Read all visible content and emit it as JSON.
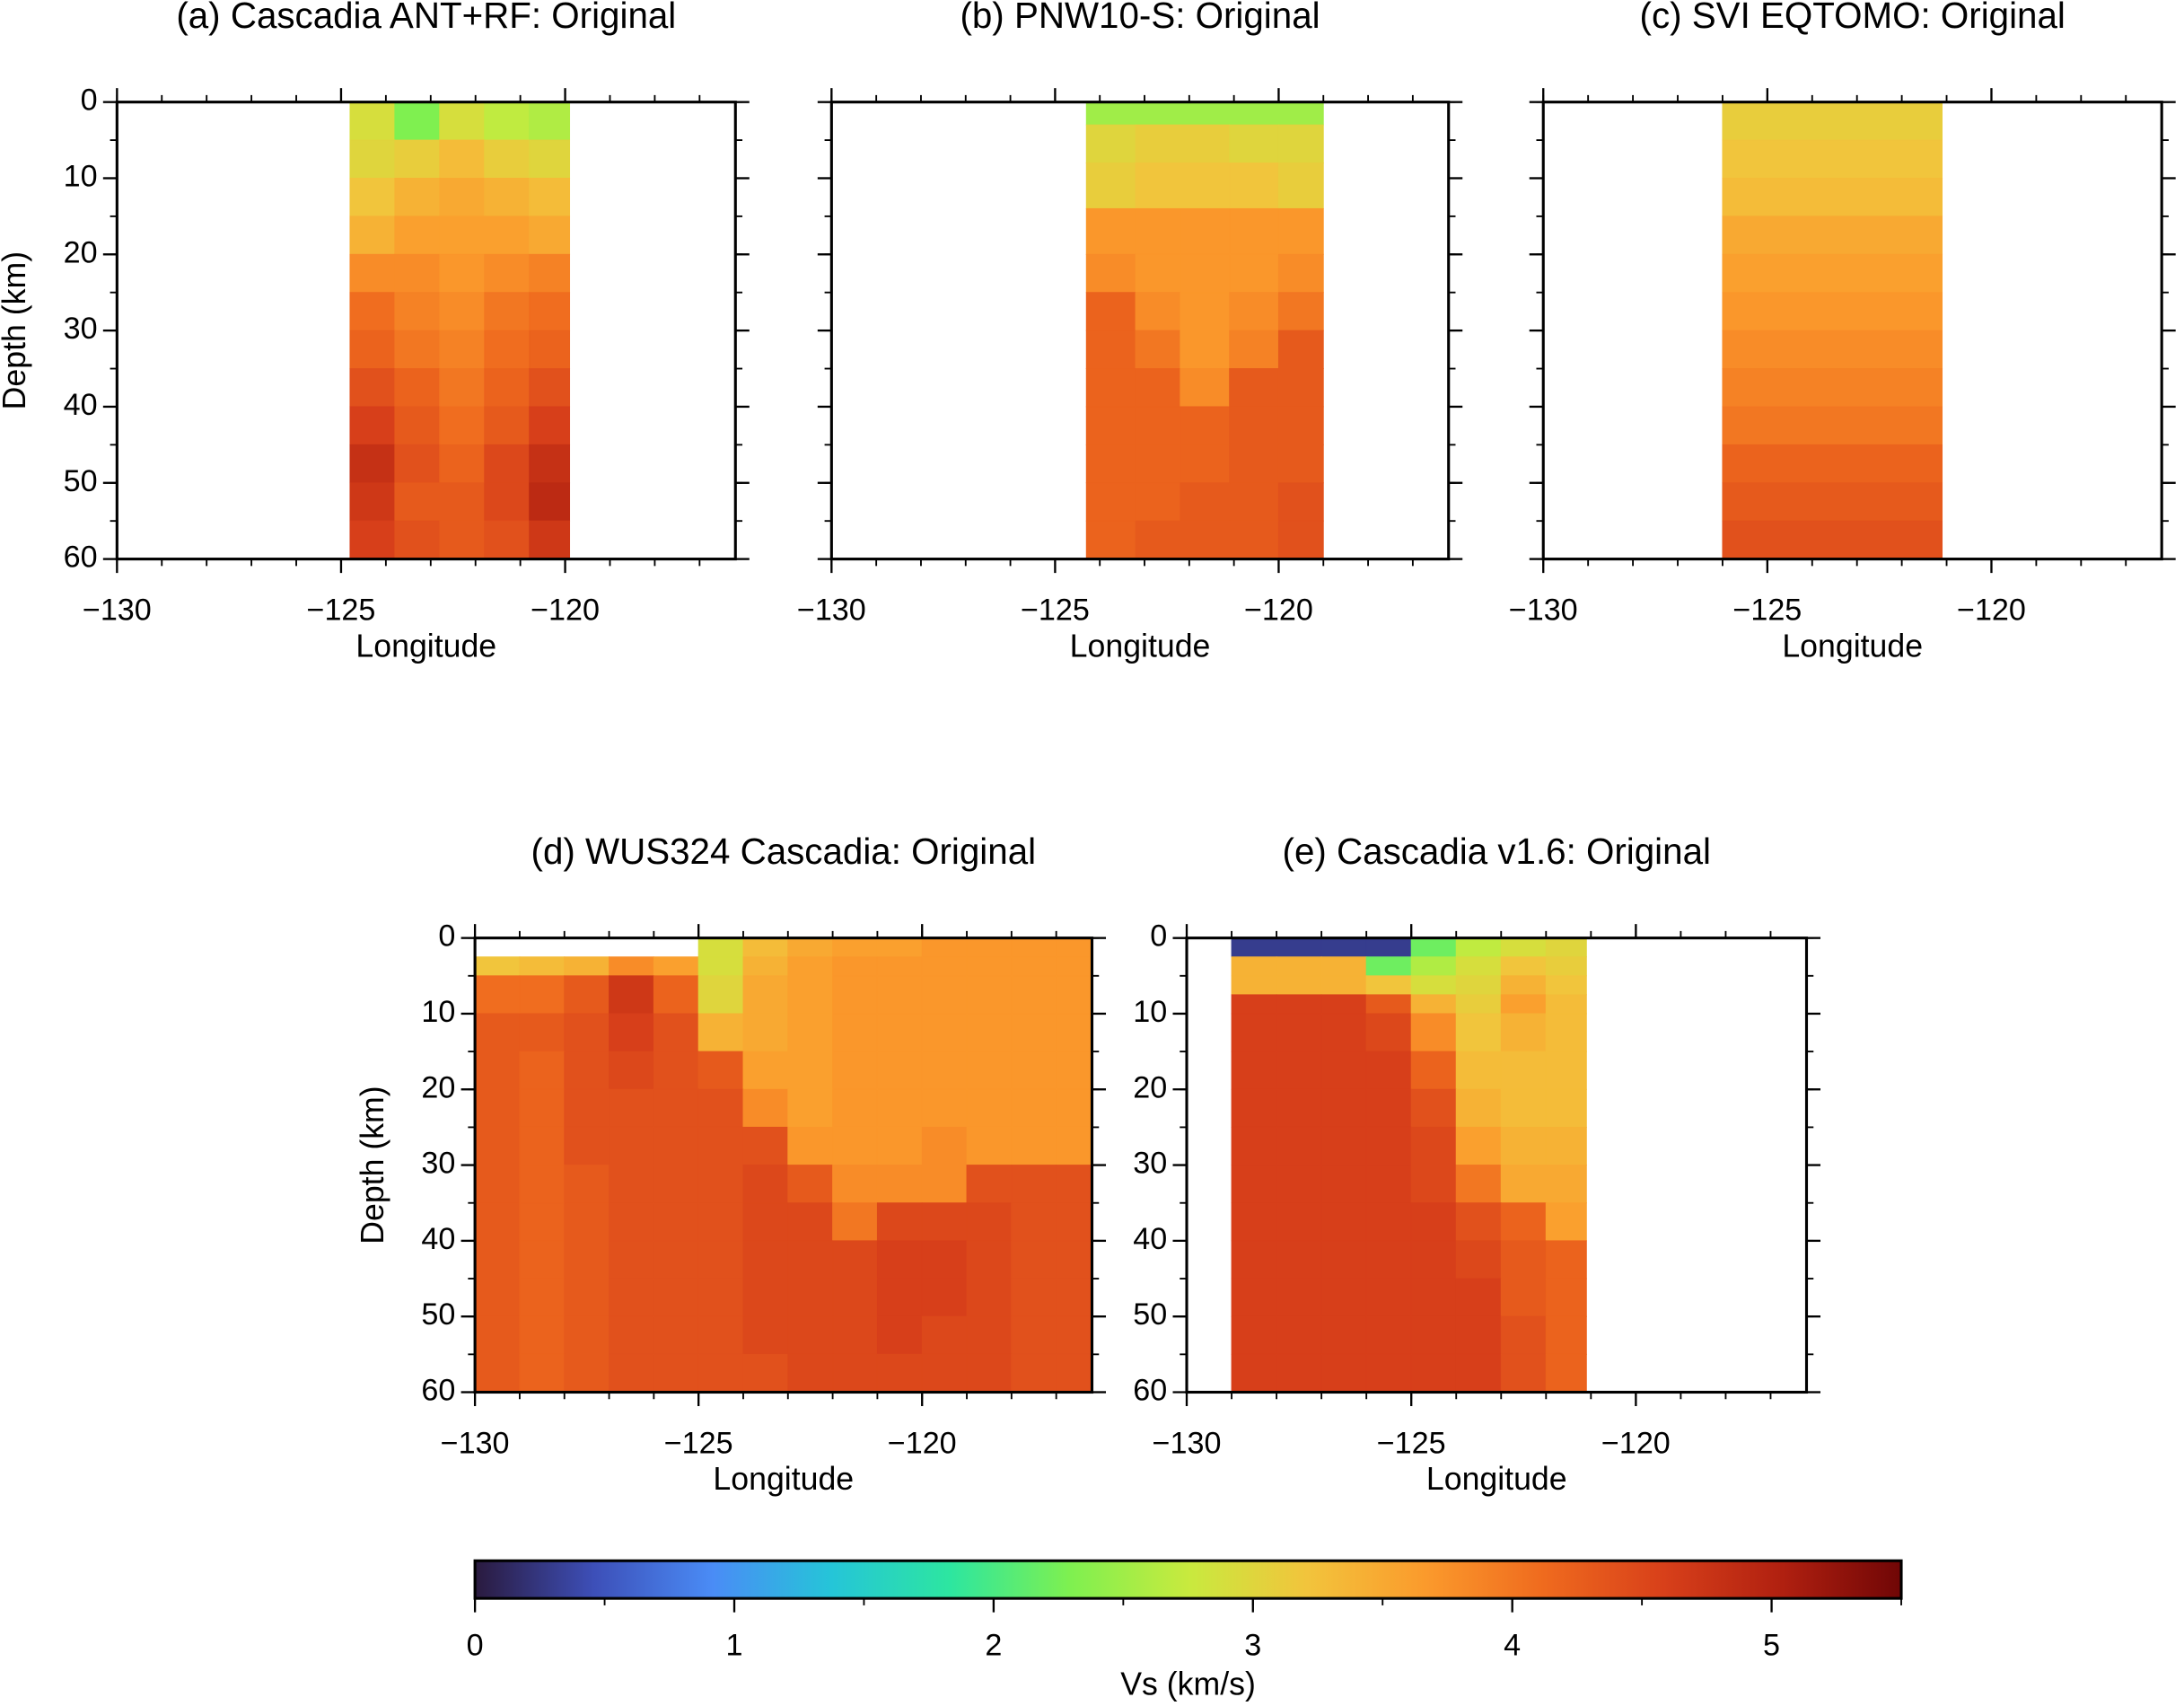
{
  "chart_data": [
    {
      "type": "heatmap",
      "title": "(a) Cascadia ANT+RF: Original",
      "xlabel": "Longitude",
      "ylabel": "Depth (km)",
      "xlim": [
        -130,
        -116.2
      ],
      "ylim": [
        60,
        0
      ],
      "xticks": [
        {
          "value": -130,
          "label": "−130"
        },
        {
          "value": -125,
          "label": "−125"
        },
        {
          "value": -120,
          "label": "−120"
        }
      ],
      "yticks": [
        0,
        10,
        20,
        30,
        40,
        50,
        60
      ],
      "show_ytick_labels": true,
      "x_edges": [
        -124.8,
        -123.8,
        -122.8,
        -121.8,
        -120.8,
        -119.9
      ],
      "y_edges": [
        0,
        5,
        10,
        15,
        20,
        25,
        30,
        35,
        40,
        45,
        50,
        55,
        60
      ],
      "z": [
        [
          2.9,
          2.3,
          2.9,
          2.7,
          2.6
        ],
        [
          3.0,
          3.1,
          3.3,
          3.1,
          3.0
        ],
        [
          3.2,
          3.4,
          3.5,
          3.4,
          3.3
        ],
        [
          3.4,
          3.6,
          3.6,
          3.6,
          3.5
        ],
        [
          3.8,
          3.8,
          3.7,
          3.8,
          3.9
        ],
        [
          4.1,
          3.9,
          3.8,
          4.0,
          4.1
        ],
        [
          4.2,
          4.0,
          3.9,
          4.1,
          4.2
        ],
        [
          4.4,
          4.2,
          4.0,
          4.2,
          4.4
        ],
        [
          4.6,
          4.3,
          4.1,
          4.3,
          4.6
        ],
        [
          4.8,
          4.4,
          4.2,
          4.5,
          4.8
        ],
        [
          4.7,
          4.3,
          4.3,
          4.5,
          4.9
        ],
        [
          4.6,
          4.4,
          4.3,
          4.4,
          4.7
        ]
      ]
    },
    {
      "type": "heatmap",
      "title": "(b) PNW10-S: Original",
      "xlabel": "Longitude",
      "xlim": [
        -130,
        -116.2
      ],
      "ylim": [
        60,
        0
      ],
      "xticks": [
        {
          "value": -130,
          "label": "−130"
        },
        {
          "value": -125,
          "label": "−125"
        },
        {
          "value": -120,
          "label": "−120"
        }
      ],
      "yticks": [
        0,
        10,
        20,
        30,
        40,
        50,
        60
      ],
      "show_ytick_labels": false,
      "x_edges": [
        -124.3,
        -123.2,
        -122.2,
        -121.1,
        -120.0,
        -119.0
      ],
      "y_edges": [
        0,
        3,
        8,
        14,
        20,
        25,
        30,
        35,
        40,
        45,
        50,
        55,
        60
      ],
      "z": [
        [
          2.5,
          2.5,
          2.5,
          2.5,
          2.5
        ],
        [
          3.0,
          3.1,
          3.1,
          3.0,
          3.0
        ],
        [
          3.1,
          3.2,
          3.2,
          3.2,
          3.1
        ],
        [
          3.7,
          3.7,
          3.7,
          3.7,
          3.7
        ],
        [
          3.8,
          3.7,
          3.7,
          3.7,
          3.8
        ],
        [
          4.2,
          3.8,
          3.7,
          3.8,
          4.0
        ],
        [
          4.2,
          4.0,
          3.7,
          3.9,
          4.3
        ],
        [
          4.2,
          4.2,
          3.8,
          4.3,
          4.3
        ],
        [
          4.2,
          4.2,
          4.2,
          4.3,
          4.3
        ],
        [
          4.2,
          4.2,
          4.2,
          4.3,
          4.3
        ],
        [
          4.2,
          4.2,
          4.3,
          4.3,
          4.4
        ],
        [
          4.2,
          4.3,
          4.3,
          4.3,
          4.4
        ]
      ]
    },
    {
      "type": "heatmap",
      "title": "(c) SVI EQTOMO: Original",
      "xlabel": "Longitude",
      "xlim": [
        -130,
        -116.2
      ],
      "ylim": [
        60,
        0
      ],
      "xticks": [
        {
          "value": -130,
          "label": "−130"
        },
        {
          "value": -125,
          "label": "−125"
        },
        {
          "value": -120,
          "label": "−120"
        }
      ],
      "yticks": [
        0,
        10,
        20,
        30,
        40,
        50,
        60
      ],
      "show_ytick_labels": false,
      "x_edges": [
        -126.0,
        -121.1
      ],
      "y_edges": [
        0,
        5,
        10,
        15,
        20,
        25,
        30,
        35,
        40,
        45,
        50,
        55,
        60
      ],
      "z": [
        [
          3.1
        ],
        [
          3.2
        ],
        [
          3.3
        ],
        [
          3.5
        ],
        [
          3.6
        ],
        [
          3.7
        ],
        [
          3.8
        ],
        [
          3.9
        ],
        [
          4.0
        ],
        [
          4.2
        ],
        [
          4.3
        ],
        [
          4.4
        ]
      ]
    },
    {
      "type": "heatmap",
      "title": "(d) WUS324 Cascadia: Original",
      "xlabel": "Longitude",
      "ylabel": "Depth (km)",
      "xlim": [
        -130,
        -116.2
      ],
      "ylim": [
        60,
        0
      ],
      "xticks": [
        {
          "value": -130,
          "label": "−130"
        },
        {
          "value": -125,
          "label": "−125"
        },
        {
          "value": -120,
          "label": "−120"
        }
      ],
      "yticks": [
        0,
        10,
        20,
        30,
        40,
        50,
        60
      ],
      "show_ytick_labels": true,
      "x_edges": [
        -130,
        -129,
        -128,
        -127,
        -126,
        -125,
        -124,
        -123,
        -122,
        -121,
        -120,
        -119,
        -118,
        -117,
        -116.2
      ],
      "y_edges": [
        0,
        2.5,
        5,
        10,
        15,
        20,
        25,
        30,
        35,
        40,
        45,
        50,
        55,
        60
      ],
      "z": [
        [
          null,
          null,
          null,
          null,
          null,
          2.9,
          3.3,
          3.5,
          3.6,
          3.6,
          3.7,
          3.7,
          3.7,
          3.7
        ],
        [
          3.2,
          3.3,
          3.4,
          3.8,
          3.6,
          2.9,
          3.4,
          3.6,
          3.7,
          3.7,
          3.7,
          3.7,
          3.7,
          3.7
        ],
        [
          4.1,
          4.1,
          4.3,
          4.7,
          4.2,
          3.0,
          3.5,
          3.6,
          3.7,
          3.7,
          3.7,
          3.7,
          3.7,
          3.7
        ],
        [
          4.3,
          4.3,
          4.4,
          4.6,
          4.4,
          3.4,
          3.5,
          3.6,
          3.7,
          3.7,
          3.7,
          3.7,
          3.7,
          3.7
        ],
        [
          4.3,
          4.2,
          4.4,
          4.5,
          4.4,
          4.3,
          3.6,
          3.6,
          3.7,
          3.7,
          3.7,
          3.7,
          3.7,
          3.7
        ],
        [
          4.3,
          4.2,
          4.4,
          4.4,
          4.4,
          4.4,
          3.8,
          3.6,
          3.7,
          3.7,
          3.7,
          3.7,
          3.7,
          3.7
        ],
        [
          4.3,
          4.2,
          4.4,
          4.4,
          4.4,
          4.4,
          4.4,
          3.7,
          3.7,
          3.7,
          3.8,
          3.7,
          3.7,
          3.7
        ],
        [
          4.3,
          4.2,
          4.3,
          4.4,
          4.4,
          4.4,
          4.5,
          4.3,
          3.8,
          3.8,
          3.8,
          4.4,
          4.4,
          4.4
        ],
        [
          4.3,
          4.2,
          4.3,
          4.4,
          4.4,
          4.4,
          4.5,
          4.5,
          4.0,
          4.5,
          4.5,
          4.5,
          4.4,
          4.4
        ],
        [
          4.3,
          4.2,
          4.3,
          4.4,
          4.4,
          4.4,
          4.5,
          4.5,
          4.5,
          4.6,
          4.6,
          4.5,
          4.4,
          4.4
        ],
        [
          4.3,
          4.2,
          4.3,
          4.4,
          4.4,
          4.4,
          4.5,
          4.5,
          4.5,
          4.6,
          4.6,
          4.5,
          4.4,
          4.4
        ],
        [
          4.3,
          4.2,
          4.3,
          4.4,
          4.4,
          4.4,
          4.5,
          4.5,
          4.5,
          4.6,
          4.5,
          4.5,
          4.4,
          4.4
        ],
        [
          4.3,
          4.2,
          4.3,
          4.4,
          4.4,
          4.4,
          4.4,
          4.5,
          4.5,
          4.5,
          4.5,
          4.5,
          4.4,
          4.4
        ]
      ]
    },
    {
      "type": "heatmap",
      "title": "(e) Cascadia v1.6: Original",
      "xlabel": "Longitude",
      "xlim": [
        -130,
        -116.2
      ],
      "ylim": [
        60,
        0
      ],
      "xticks": [
        {
          "value": -130,
          "label": "−130"
        },
        {
          "value": -125,
          "label": "−125"
        },
        {
          "value": -120,
          "label": "−120"
        }
      ],
      "yticks": [
        0,
        10,
        20,
        30,
        40,
        50,
        60
      ],
      "show_ytick_labels": true,
      "x_edges": [
        -129,
        -128,
        -127,
        -126,
        -125,
        -124,
        -123,
        -122,
        -121.1
      ],
      "y_edges": [
        0,
        2.5,
        5,
        7.5,
        10,
        15,
        20,
        25,
        30,
        35,
        40,
        45,
        50,
        55,
        60
      ],
      "z": [
        [
          0.3,
          0.3,
          0.3,
          0.3,
          2.2,
          2.7,
          2.9,
          3.0
        ],
        [
          3.4,
          3.4,
          3.4,
          2.2,
          2.6,
          2.9,
          3.2,
          3.1
        ],
        [
          3.4,
          3.4,
          3.4,
          3.2,
          2.9,
          3.0,
          3.4,
          3.2
        ],
        [
          4.6,
          4.6,
          4.6,
          4.3,
          3.4,
          3.1,
          3.6,
          3.3
        ],
        [
          4.6,
          4.6,
          4.6,
          4.5,
          3.8,
          3.2,
          3.4,
          3.3
        ],
        [
          4.6,
          4.6,
          4.6,
          4.6,
          4.2,
          3.3,
          3.3,
          3.3
        ],
        [
          4.6,
          4.6,
          4.6,
          4.6,
          4.4,
          3.4,
          3.3,
          3.3
        ],
        [
          4.6,
          4.6,
          4.6,
          4.6,
          4.5,
          3.6,
          3.4,
          3.4
        ],
        [
          4.6,
          4.6,
          4.6,
          4.6,
          4.5,
          4.0,
          3.5,
          3.5
        ],
        [
          4.6,
          4.6,
          4.6,
          4.6,
          4.6,
          4.4,
          4.2,
          3.6
        ],
        [
          4.6,
          4.6,
          4.6,
          4.6,
          4.6,
          4.5,
          4.3,
          4.2
        ],
        [
          4.6,
          4.6,
          4.6,
          4.6,
          4.6,
          4.6,
          4.3,
          4.2
        ],
        [
          4.6,
          4.6,
          4.6,
          4.6,
          4.6,
          4.6,
          4.4,
          4.2
        ],
        [
          4.6,
          4.6,
          4.6,
          4.6,
          4.6,
          4.6,
          4.4,
          4.2
        ]
      ]
    },
    {
      "type": "colorbar",
      "xlabel": "Vs (km/s)",
      "xlim": [
        0,
        5.5
      ],
      "xticks": [
        0,
        1,
        2,
        3,
        4,
        5
      ],
      "colormap": [
        "#2a1a3e",
        "#3d4fb8",
        "#4a8cf6",
        "#25c5d8",
        "#2de6a0",
        "#7ef050",
        "#c8ea3e",
        "#f2c43c",
        "#fb9a2c",
        "#ef6a1e",
        "#d8401a",
        "#b02010",
        "#700606"
      ]
    }
  ]
}
